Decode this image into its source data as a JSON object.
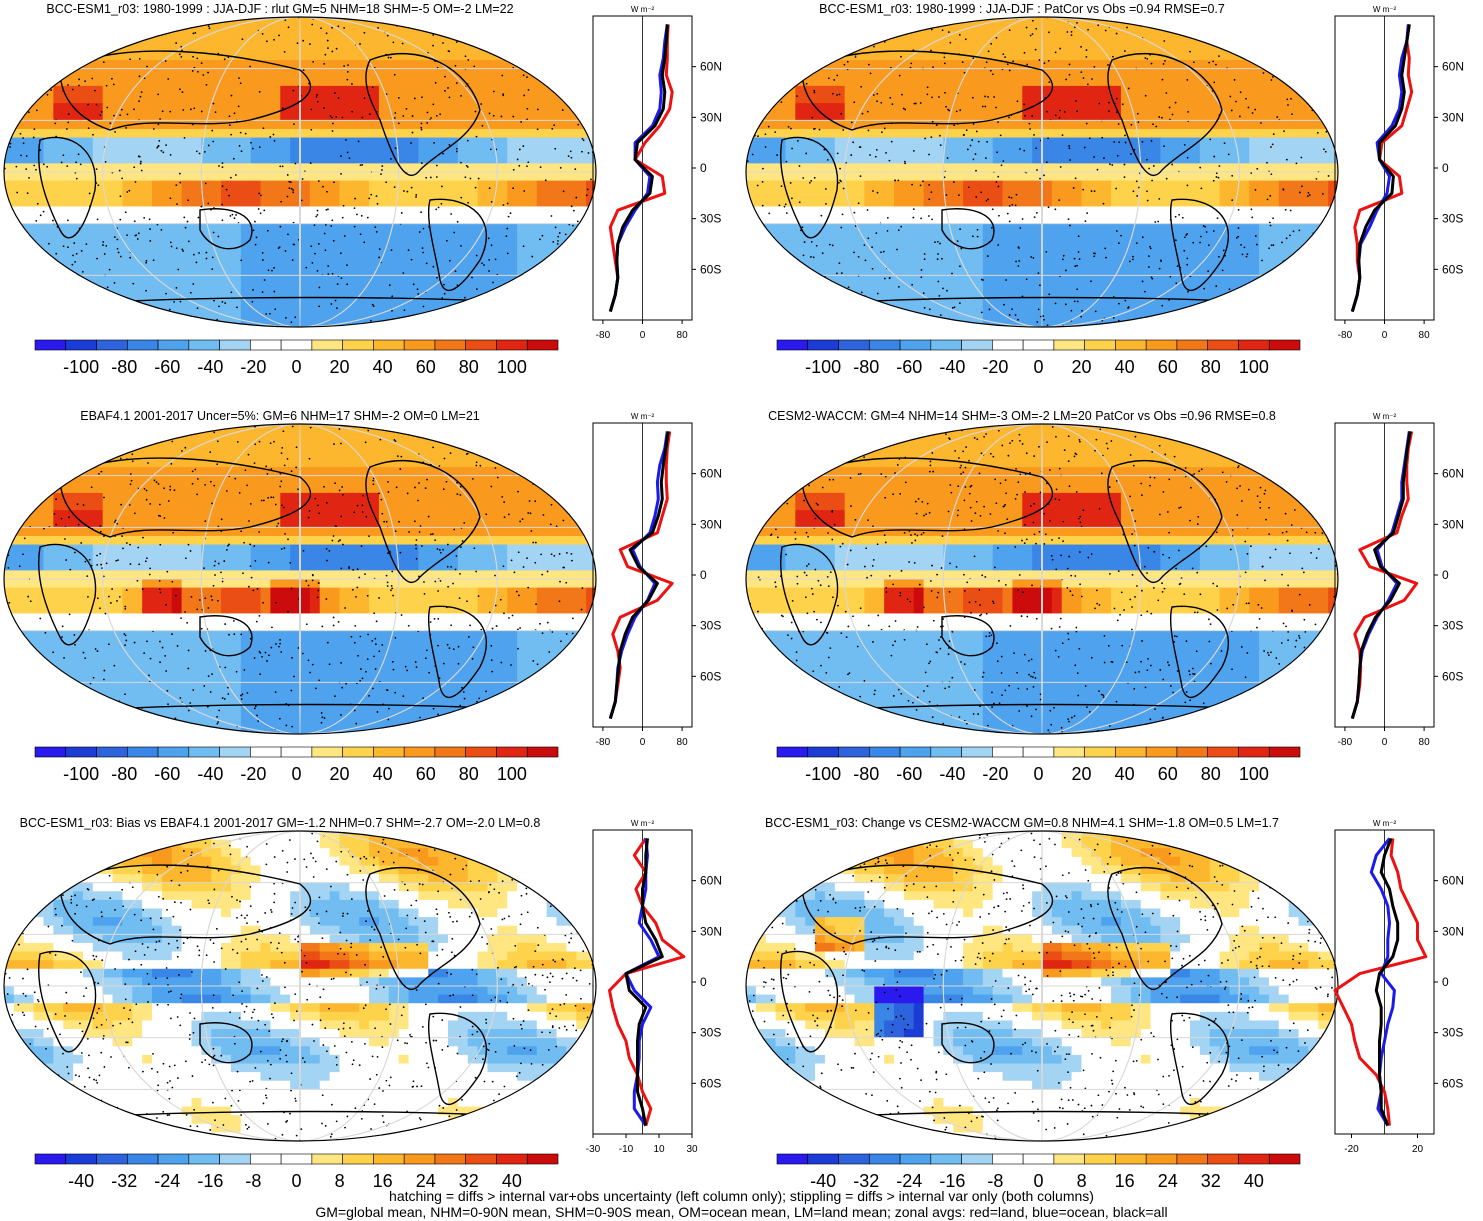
{
  "panels": [
    {
      "id": "p1",
      "title": "BCC-ESM1_r03: 1980-1999 : JJA-DJF : rlut GM=5 NHM=18 SHM=-5 OM=-2 LM=22",
      "units": "W m⁻²",
      "colorbar_labels": [
        "-100",
        "-80",
        "-60",
        "-40",
        "-20",
        "0",
        "20",
        "40",
        "60",
        "80",
        "100"
      ],
      "zonal_xticks": [
        "-80",
        "0",
        "80"
      ],
      "zonal_xlim": [
        -100,
        100
      ]
    },
    {
      "id": "p2",
      "title": "BCC-ESM1_r03: 1980-1999 : JJA-DJF : PatCor vs Obs =0.94 RMSE=0.7",
      "units": "W m⁻²",
      "colorbar_labels": [
        "-100",
        "-80",
        "-60",
        "-40",
        "-20",
        "0",
        "20",
        "40",
        "60",
        "80",
        "100"
      ],
      "zonal_xticks": [
        "-80",
        "0",
        "80"
      ],
      "zonal_xlim": [
        -100,
        100
      ]
    },
    {
      "id": "p3",
      "title": "EBAF4.1 2001-2017 Uncer=5%: GM=6 NHM=17 SHM=-2 OM=0 LM=21",
      "units": "W m⁻²",
      "colorbar_labels": [
        "-100",
        "-80",
        "-60",
        "-40",
        "-20",
        "0",
        "20",
        "40",
        "60",
        "80",
        "100"
      ],
      "zonal_xticks": [
        "-80",
        "0",
        "80"
      ],
      "zonal_xlim": [
        -100,
        100
      ]
    },
    {
      "id": "p4",
      "title": "CESM2-WACCM: GM=4 NHM=14 SHM=-3 OM=-2 LM=20 PatCor vs Obs =0.96 RMSE=0.8",
      "units": "W m⁻²",
      "colorbar_labels": [
        "-100",
        "-80",
        "-60",
        "-40",
        "-20",
        "0",
        "20",
        "40",
        "60",
        "80",
        "100"
      ],
      "zonal_xticks": [
        "-80",
        "0",
        "80"
      ],
      "zonal_xlim": [
        -100,
        100
      ]
    },
    {
      "id": "p5",
      "title": "BCC-ESM1_r03: Bias vs EBAF4.1 2001-2017 GM=-1.2 NHM=0.7 SHM=-2.7 OM=-2.0 LM=0.8",
      "units": "W m⁻²",
      "colorbar_labels": [
        "-40",
        "-32",
        "-24",
        "-16",
        "-8",
        "0",
        "8",
        "16",
        "24",
        "32",
        "40"
      ],
      "zonal_xticks": [
        "-30",
        "-10",
        "10",
        "30"
      ],
      "zonal_xlim": [
        -30,
        30
      ]
    },
    {
      "id": "p6",
      "title": "BCC-ESM1_r03: Change vs CESM2-WACCM GM=0.8 NHM=4.1 SHM=-1.8 OM=0.5 LM=1.7",
      "units": "W m⁻²",
      "colorbar_labels": [
        "-40",
        "-32",
        "-24",
        "-16",
        "-8",
        "0",
        "8",
        "16",
        "24",
        "32",
        "40"
      ],
      "zonal_xticks": [
        "-20",
        "20"
      ],
      "zonal_xlim": [
        -30,
        30
      ]
    }
  ],
  "lat_labels": [
    "60N",
    "30N",
    "0",
    "30S",
    "60S"
  ],
  "footer": {
    "line1": "hatching = diffs > internal var+obs uncertainty (left column only); stippling = diffs > internal var only (both columns)",
    "line2": "GM=global mean, NHM=0-90N mean, SHM=0-90S mean, OM=ocean mean, LM=land mean; zonal avgs: red=land, blue=ocean, black=all"
  },
  "colors": {
    "palette": [
      "#2a1aee",
      "#1c3cd6",
      "#2d63dc",
      "#3a86e6",
      "#4fa3ee",
      "#71bdf2",
      "#a3d4f4",
      "#ffffff",
      "#ffffff",
      "#ffe680",
      "#fed24a",
      "#fcb72e",
      "#f99a1e",
      "#f27718",
      "#ea4e14",
      "#e02612",
      "#cc0c0c"
    ],
    "land": "#ee1111",
    "ocean": "#1a1aee",
    "all": "#000000"
  },
  "chart_data": [
    {
      "type": "line",
      "panel": "p1",
      "xlim": [
        -100,
        100
      ],
      "ylim": [
        -90,
        90
      ],
      "y": [
        85,
        75,
        65,
        55,
        45,
        35,
        25,
        15,
        5,
        -5,
        -15,
        -25,
        -35,
        -45,
        -55,
        -65,
        -75,
        -85
      ],
      "series": [
        {
          "name": "red=land",
          "values": [
            52,
            50,
            50,
            48,
            60,
            55,
            35,
            5,
            -15,
            40,
            45,
            -50,
            -65,
            -60,
            -55,
            -50,
            -55,
            -65
          ]
        },
        {
          "name": "blue=ocean",
          "values": [
            50,
            45,
            42,
            35,
            38,
            35,
            20,
            -15,
            -15,
            15,
            10,
            -15,
            -35,
            -50,
            -52,
            -50,
            -55,
            -65
          ]
        },
        {
          "name": "black=all",
          "values": [
            50,
            48,
            45,
            40,
            45,
            42,
            25,
            -10,
            -15,
            20,
            15,
            -20,
            -40,
            -50,
            -52,
            -50,
            -55,
            -65
          ]
        }
      ]
    },
    {
      "type": "line",
      "panel": "p2",
      "xlim": [
        -100,
        100
      ],
      "ylim": [
        -90,
        90
      ],
      "y": [
        85,
        75,
        65,
        55,
        45,
        35,
        25,
        15,
        5,
        -5,
        -15,
        -25,
        -35,
        -45,
        -55,
        -65,
        -75,
        -85
      ],
      "series": [
        {
          "name": "red=land",
          "values": [
            50,
            45,
            50,
            48,
            55,
            45,
            35,
            -5,
            -10,
            30,
            35,
            -50,
            -60,
            -55,
            -55,
            -50,
            -55,
            -65
          ]
        },
        {
          "name": "blue=ocean",
          "values": [
            48,
            45,
            35,
            30,
            35,
            30,
            15,
            -15,
            -10,
            10,
            5,
            -15,
            -30,
            -48,
            -52,
            -50,
            -55,
            -65
          ]
        },
        {
          "name": "black=all",
          "values": [
            50,
            45,
            40,
            35,
            40,
            35,
            22,
            -10,
            -10,
            18,
            15,
            -20,
            -38,
            -50,
            -52,
            -50,
            -55,
            -65
          ]
        }
      ]
    },
    {
      "type": "line",
      "panel": "p3",
      "xlim": [
        -100,
        100
      ],
      "ylim": [
        -90,
        90
      ],
      "y": [
        85,
        75,
        65,
        55,
        45,
        35,
        25,
        15,
        5,
        -5,
        -15,
        -25,
        -35,
        -45,
        -55,
        -65,
        -75,
        -85
      ],
      "series": [
        {
          "name": "red=land",
          "values": [
            55,
            50,
            48,
            48,
            50,
            40,
            30,
            -45,
            -30,
            60,
            30,
            -45,
            -60,
            -50,
            -45,
            -50,
            -55,
            -65
          ]
        },
        {
          "name": "blue=ocean",
          "values": [
            50,
            45,
            35,
            30,
            32,
            25,
            15,
            -20,
            -5,
            25,
            10,
            -15,
            -30,
            -42,
            -50,
            -52,
            -55,
            -65
          ]
        },
        {
          "name": "black=all",
          "values": [
            52,
            47,
            42,
            38,
            40,
            32,
            20,
            -25,
            -8,
            30,
            12,
            -20,
            -35,
            -45,
            -48,
            -52,
            -55,
            -65
          ]
        }
      ]
    },
    {
      "type": "line",
      "panel": "p4",
      "xlim": [
        -100,
        100
      ],
      "ylim": [
        -90,
        90
      ],
      "y": [
        85,
        75,
        65,
        55,
        45,
        35,
        25,
        15,
        5,
        -5,
        -15,
        -25,
        -35,
        -45,
        -55,
        -65,
        -75,
        -85
      ],
      "series": [
        {
          "name": "red=land",
          "values": [
            55,
            48,
            45,
            45,
            48,
            35,
            25,
            -50,
            -30,
            65,
            40,
            -40,
            -60,
            -50,
            -48,
            -50,
            -55,
            -65
          ]
        },
        {
          "name": "blue=ocean",
          "values": [
            50,
            45,
            40,
            35,
            35,
            25,
            15,
            -15,
            -5,
            25,
            8,
            -15,
            -32,
            -45,
            -50,
            -52,
            -55,
            -65
          ]
        },
        {
          "name": "black=all",
          "values": [
            52,
            46,
            42,
            38,
            38,
            28,
            18,
            -20,
            -8,
            30,
            12,
            -18,
            -35,
            -47,
            -50,
            -52,
            -55,
            -65
          ]
        }
      ]
    },
    {
      "type": "line",
      "panel": "p5",
      "xlim": [
        -30,
        30
      ],
      "ylim": [
        -90,
        90
      ],
      "y": [
        85,
        75,
        65,
        55,
        45,
        35,
        25,
        15,
        5,
        -5,
        -15,
        -25,
        -35,
        -45,
        -55,
        -65,
        -75,
        -85
      ],
      "series": [
        {
          "name": "red=land",
          "values": [
            2,
            -5,
            2,
            -4,
            0,
            8,
            12,
            25,
            -10,
            -20,
            -18,
            -15,
            -10,
            -8,
            -3,
            0,
            5,
            2
          ]
        },
        {
          "name": "blue=ocean",
          "values": [
            2,
            3,
            2,
            2,
            0,
            -2,
            5,
            10,
            -10,
            -5,
            5,
            0,
            -2,
            -2,
            -3,
            -5,
            -5,
            2
          ]
        },
        {
          "name": "black=all",
          "values": [
            3,
            2,
            2,
            0,
            0,
            2,
            8,
            12,
            -10,
            -8,
            2,
            -2,
            -3,
            -3,
            -3,
            -3,
            0,
            2
          ]
        }
      ]
    },
    {
      "type": "line",
      "panel": "p6",
      "xlim": [
        -30,
        30
      ],
      "ylim": [
        -90,
        90
      ],
      "y": [
        85,
        75,
        65,
        55,
        45,
        35,
        25,
        15,
        5,
        -5,
        -15,
        -25,
        -35,
        -45,
        -55,
        -65,
        -75,
        -85
      ],
      "series": [
        {
          "name": "red=land",
          "values": [
            5,
            4,
            8,
            10,
            15,
            20,
            20,
            25,
            -15,
            -30,
            -25,
            -20,
            -18,
            -15,
            -5,
            0,
            2,
            3
          ]
        },
        {
          "name": "blue=ocean",
          "values": [
            3,
            -5,
            -8,
            -2,
            2,
            3,
            2,
            2,
            -2,
            6,
            5,
            2,
            0,
            -2,
            -3,
            -2,
            -4,
            2
          ]
        },
        {
          "name": "black=all",
          "values": [
            4,
            0,
            -2,
            3,
            5,
            8,
            8,
            5,
            -3,
            -5,
            -2,
            -2,
            -3,
            -3,
            -3,
            -2,
            -2,
            2
          ]
        }
      ]
    }
  ]
}
